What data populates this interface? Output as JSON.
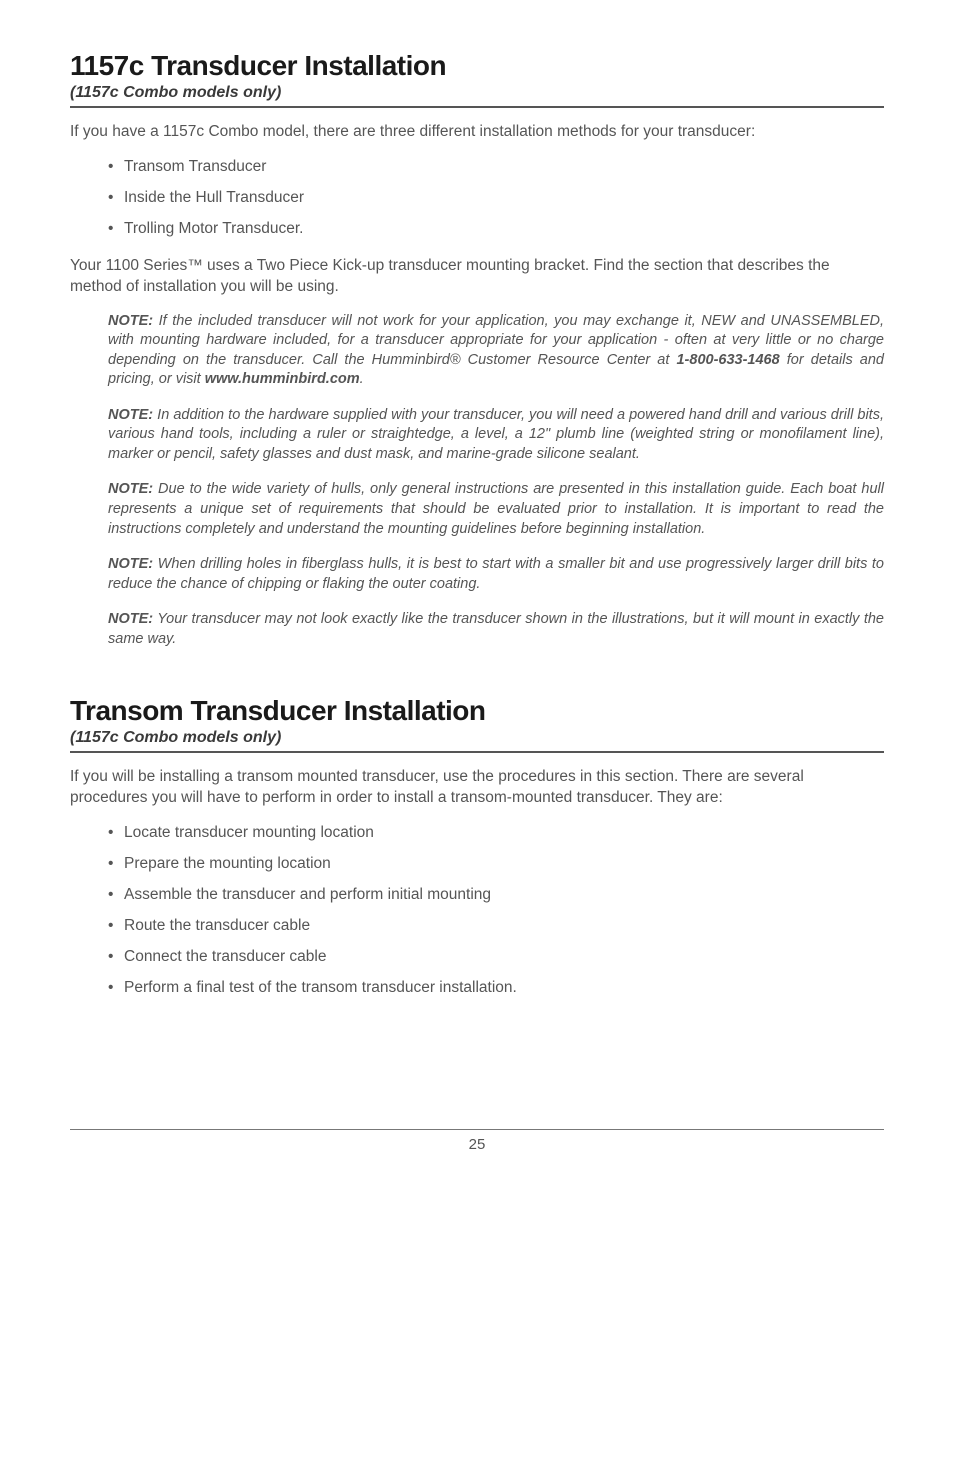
{
  "section1": {
    "heading": "1157c Transducer Installation",
    "subtitle": "(1157c Combo models only)",
    "intro": "If you have a 1157c Combo model, there are three different installation methods for your transducer:",
    "bullets": [
      "Transom Transducer",
      "Inside the Hull Transducer",
      "Trolling Motor Transducer."
    ],
    "para2": "Your 1100 Series™ uses a Two Piece Kick-up transducer mounting bracket. Find the section that describes the method of installation you will be using.",
    "notes": [
      {
        "lead": "NOTE:",
        "text_a": " If the included transducer will not work for your application, you may exchange it, NEW and UNASSEMBLED, with mounting hardware included, for a transducer appropriate for your application - often at very little or no charge depending on the transducer. Call the Humminbird® Customer Resource Center at ",
        "bold_b": "1-800-633-1468",
        "text_c": " for details and pricing, or visit ",
        "bold_d": "www.humminbird.com",
        "text_e": "."
      },
      {
        "lead": "NOTE:",
        "text": " In addition to the hardware supplied with your transducer, you will need a powered hand drill and various drill bits, various hand tools, including a ruler or straightedge, a level, a 12\" plumb line (weighted string or monofilament line), marker or pencil, safety glasses and dust mask, and marine-grade silicone sealant."
      },
      {
        "lead": "NOTE:",
        "text": " Due to the wide variety of hulls, only general instructions are presented in this installation guide. Each boat hull represents a unique set of requirements that should be evaluated prior to installation. It is important to read the instructions completely and understand the mounting guidelines before beginning installation."
      },
      {
        "lead": "NOTE:",
        "text": " When drilling holes in fiberglass hulls, it is best to start with a smaller bit and use progressively larger drill bits to reduce the chance of chipping or flaking the outer coating."
      },
      {
        "lead": "NOTE:",
        "text": " Your transducer may not look exactly like the transducer shown in the illustrations, but it will mount in exactly the same way."
      }
    ]
  },
  "section2": {
    "heading": "Transom Transducer Installation",
    "subtitle": "(1157c Combo models only)",
    "intro": "If you will be installing a transom mounted transducer, use the procedures in this section. There are several procedures you will have to perform in order to install a transom-mounted transducer. They are:",
    "bullets": [
      "Locate transducer mounting location",
      "Prepare the mounting location",
      "Assemble the transducer and perform initial mounting",
      "Route the transducer cable",
      "Connect the transducer cable",
      "Perform a final test of the transom transducer installation."
    ]
  },
  "pageNumber": "25"
}
